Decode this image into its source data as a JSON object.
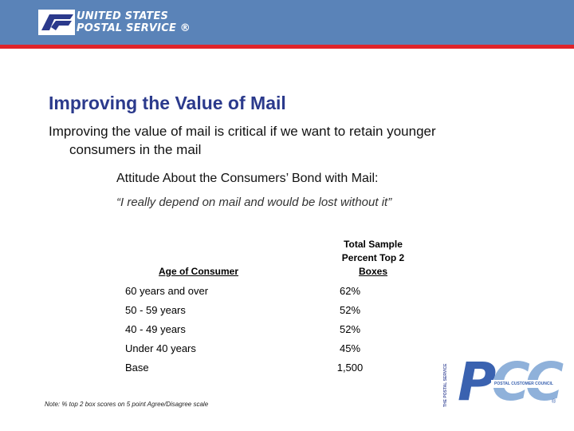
{
  "header": {
    "logo_line1": "UNITED STATES",
    "logo_line2": "POSTAL SERVICE ®",
    "colors": {
      "bar": "#5a83b8",
      "rule": "#e0242a"
    }
  },
  "slide": {
    "title": "Improving the Value of Mail",
    "lead_line1": "Improving the value of mail is critical if we want to retain younger",
    "lead_line2": "consumers in the mail",
    "subhead": "Attitude About the Consumers’ Bond with Mail:",
    "quote": "“I really depend on mail and would be lost without it”"
  },
  "table": {
    "col_age": "Age of Consumer",
    "col_total_line1": "Total Sample",
    "col_total_line2": "Percent Top 2",
    "col_total_line3": "Boxes",
    "rows": [
      {
        "age": "60 years and over",
        "pct": "62%"
      },
      {
        "age": "50 - 59 years",
        "pct": "52%"
      },
      {
        "age": "40 - 49 years",
        "pct": "52%"
      },
      {
        "age": "Under 40 years",
        "pct": "45%"
      },
      {
        "age": "Base",
        "pct": "1,500"
      }
    ]
  },
  "note": "Note: % top 2 box scores on 5 point Agree/Disagree scale",
  "pcc_logo": {
    "side_text": "THE POSTAL SERVICE",
    "p": "P",
    "cc": "CC",
    "band_text": "POSTAL CUSTOMER COUNCIL",
    "reg": "®"
  }
}
